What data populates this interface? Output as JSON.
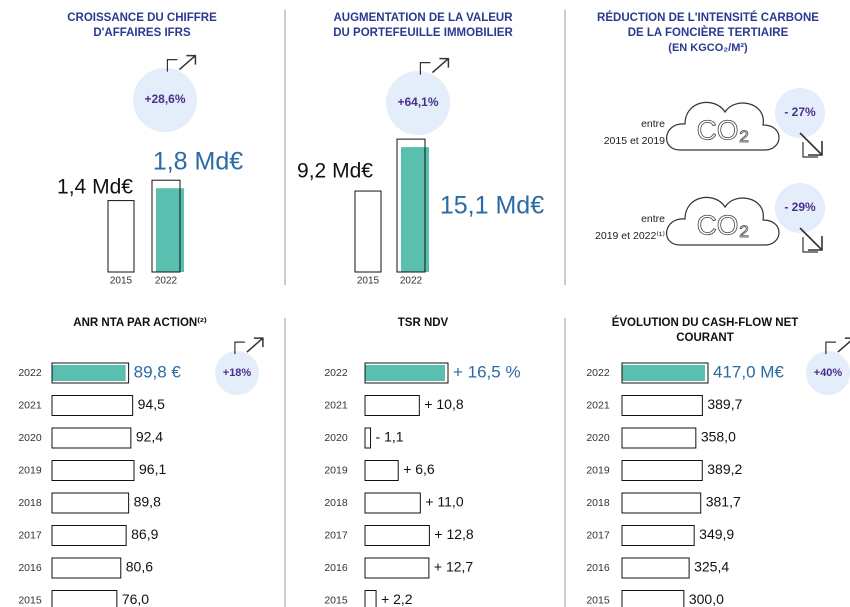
{
  "chart_data": [
    {
      "type": "bar",
      "title": [
        "CROISSANCE DU CHIFFRE",
        "D'AFFAIRES IFRS"
      ],
      "categories": [
        "2015",
        "2022"
      ],
      "values": [
        1.4,
        1.8
      ],
      "value_labels": [
        "1,4 Md€",
        "1,8 Md€"
      ],
      "annotation": "+28,6%",
      "color": "#5bbfb0"
    },
    {
      "type": "bar",
      "title": [
        "AUGMENTATION DE LA VALEUR",
        "DU PORTEFEUILLE IMMOBILIER"
      ],
      "categories": [
        "2015",
        "2022"
      ],
      "values": [
        9.2,
        15.1
      ],
      "value_labels": [
        "9,2 Md€",
        "15,1 Md€"
      ],
      "annotation": "+64,1%",
      "color": "#5bbfb0"
    },
    {
      "type": "icon",
      "title": [
        "RÉDUCTION DE L'INTENSITÉ CARBONE",
        "DE LA FONCIÈRE TERTIAIRE"
      ],
      "subtitle": "(EN KGCO₂/M²)",
      "categories": [
        [
          "entre",
          "2015 et 2019"
        ],
        [
          "entre",
          "2019 et 2022⁽¹⁾"
        ]
      ],
      "cloud_label": "CO₂",
      "values": [
        -27,
        -29
      ],
      "value_labels": [
        "- 27%",
        "- 29%"
      ]
    },
    {
      "type": "hbar",
      "title": [
        "ANR NTA PAR ACTION⁽²⁾"
      ],
      "categories": [
        "2022",
        "2021",
        "2020",
        "2019",
        "2018",
        "2017",
        "2016",
        "2015"
      ],
      "values": [
        89.8,
        94.5,
        92.4,
        96.1,
        89.8,
        86.9,
        80.6,
        76.0
      ],
      "value_labels": [
        "89,8 €",
        "94,5",
        "92,4",
        "96,1",
        "89,8",
        "86,9",
        "80,6",
        "76,0"
      ],
      "annotation": "+18%",
      "color": "#5bbfb0"
    },
    {
      "type": "hbar",
      "title": [
        "TSR NDV"
      ],
      "categories": [
        "2022",
        "2021",
        "2020",
        "2019",
        "2018",
        "2017",
        "2016",
        "2015"
      ],
      "values": [
        16.5,
        10.8,
        -1.1,
        6.6,
        11.0,
        12.8,
        12.7,
        2.2
      ],
      "value_labels": [
        "+ 16,5 %",
        "+ 10,8",
        "- 1,1",
        "+ 6,6",
        "+ 11,0",
        "+ 12,8",
        "+ 12,7",
        "+ 2,2"
      ],
      "color": "#5bbfb0"
    },
    {
      "type": "hbar",
      "title": [
        "ÉVOLUTION DU CASH-FLOW NET",
        "COURANT"
      ],
      "categories": [
        "2022",
        "2021",
        "2020",
        "2019",
        "2018",
        "2017",
        "2016",
        "2015"
      ],
      "values": [
        417.0,
        389.7,
        358.0,
        389.2,
        381.7,
        349.9,
        325.4,
        300.0
      ],
      "value_labels": [
        "417,0 M€",
        "389,7",
        "358,0",
        "389,2",
        "381,7",
        "349,9",
        "325,4",
        "300,0"
      ],
      "annotation": "+40%",
      "color": "#5bbfb0"
    }
  ]
}
